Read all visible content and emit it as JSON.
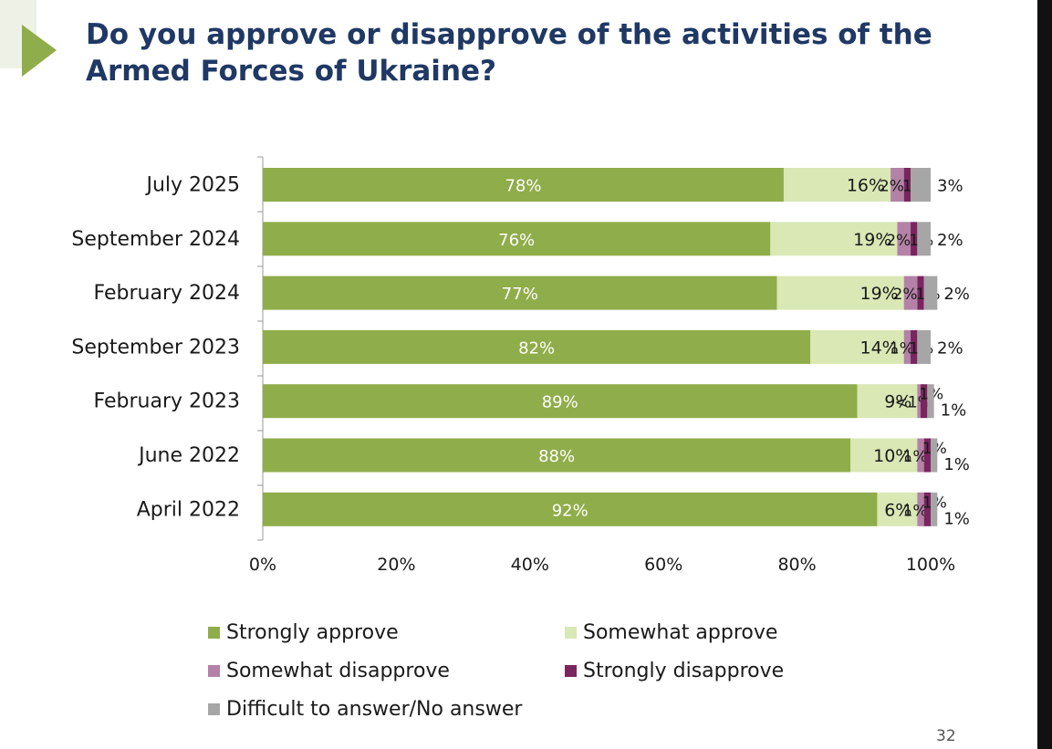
{
  "slide": {
    "title_line1": "Do you approve or disapprove of the activities of the",
    "title_line2": "Armed Forces of Ukraine?",
    "page_number": "32",
    "nav_icon": "triangle-play-icon"
  },
  "colors": {
    "strongly_approve": "#8fad4a",
    "somewhat_approve": "#d9e8b5",
    "somewhat_disapprove": "#b481a7",
    "strongly_disapprove": "#7a2560",
    "difficult": "#a6a6a6",
    "title": "#1f3864",
    "accent": "#8fad4a"
  },
  "chart_data": {
    "type": "bar",
    "orientation": "horizontal",
    "stacked": true,
    "xlim": [
      0,
      100
    ],
    "x_ticks": [
      "0%",
      "20%",
      "40%",
      "60%",
      "80%",
      "100%"
    ],
    "grid": false,
    "legend_position": "bottom",
    "categories": [
      "July 2025",
      "September 2024",
      "February 2024",
      "September 2023",
      "February 2023",
      "June 2022",
      "April 2022"
    ],
    "series": [
      {
        "name": "Strongly approve",
        "color_key": "strongly_approve",
        "values": [
          78,
          76,
          77,
          82,
          89,
          88,
          92
        ],
        "labels": [
          "78%",
          "76%",
          "77%",
          "82%",
          "89%",
          "88%",
          "92%"
        ]
      },
      {
        "name": "Somewhat approve",
        "color_key": "somewhat_approve",
        "values": [
          16,
          19,
          19,
          14,
          9,
          10,
          6
        ],
        "labels": [
          "16%",
          "19%",
          "19%",
          "14%",
          "9%",
          "10%",
          "6%"
        ]
      },
      {
        "name": "Somewhat disapprove",
        "color_key": "somewhat_disapprove",
        "values": [
          2,
          2,
          2,
          1,
          0.5,
          1,
          1
        ],
        "labels": [
          "2%",
          "2%",
          "2%",
          "1%",
          "<1%",
          "1%",
          "1%"
        ]
      },
      {
        "name": "Strongly disapprove",
        "color_key": "strongly_disapprove",
        "values": [
          1,
          1,
          1,
          1,
          1,
          1,
          1
        ],
        "labels": [
          "1%",
          "1%",
          "1%",
          "1%",
          "1%",
          "1%",
          "1%"
        ]
      },
      {
        "name": "Difficult to answer/No answer",
        "color_key": "difficult",
        "values": [
          3,
          2,
          2,
          2,
          1,
          1,
          1
        ],
        "labels": [
          "3%",
          "2%",
          "2%",
          "2%",
          "1%",
          "1%",
          "1%"
        ]
      }
    ]
  }
}
